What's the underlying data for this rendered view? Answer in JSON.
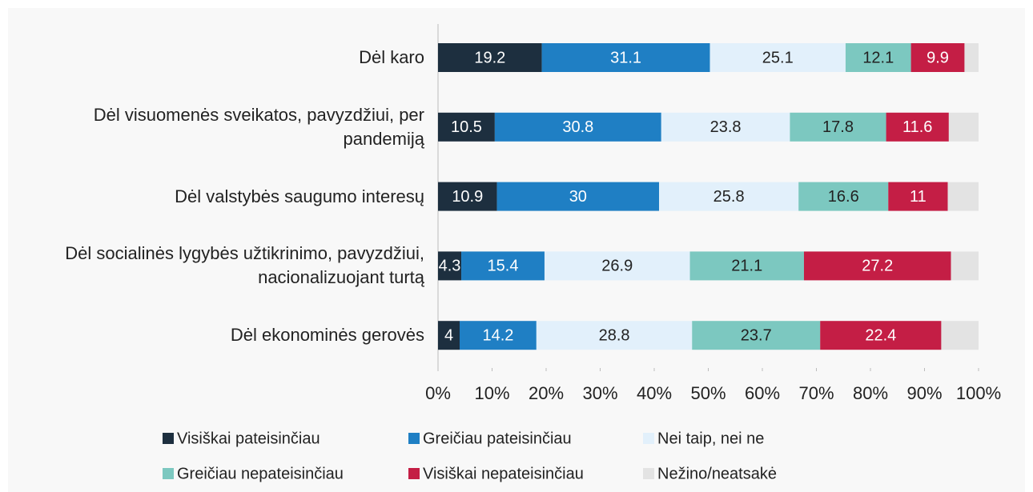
{
  "chart_data": {
    "type": "stacked_barh",
    "categories": [
      "Dėl karo",
      "Dėl visuomenės sveikatos, pavyzdžiui, per pandemiją",
      "Dėl valstybės saugumo interesų",
      "Dėl socialinės lygybės užtikrinimo, pavyzdžiui, nacionalizuojant turtą",
      "Dėl ekonominės gerovės"
    ],
    "series": [
      {
        "name": "Visiškai pateisinčiau",
        "color": "#1d2f3f",
        "label_color": "#ffffff",
        "values": [
          19.2,
          10.5,
          10.9,
          4.3,
          4
        ]
      },
      {
        "name": "Greičiau pateisinčiau",
        "color": "#1f7fc4",
        "label_color": "#ffffff",
        "values": [
          31.1,
          30.8,
          30,
          15.4,
          14.2
        ]
      },
      {
        "name": "Nei taip, nei ne",
        "color": "#e2f0fb",
        "label_color": "#222222",
        "values": [
          25.1,
          23.8,
          25.8,
          26.9,
          28.8
        ]
      },
      {
        "name": "Greičiau nepateisinčiau",
        "color": "#7cc8c0",
        "label_color": "#222222",
        "values": [
          12.1,
          17.8,
          16.6,
          21.1,
          23.7
        ]
      },
      {
        "name": "Visiškai nepateisinčiau",
        "color": "#c41e45",
        "label_color": "#ffffff",
        "values": [
          9.9,
          11.6,
          11,
          27.2,
          22.4
        ]
      },
      {
        "name": "Nežino/neatsakė",
        "color": "#e3e3e3",
        "values": [
          2.6,
          5.5,
          5.7,
          5.1,
          6.9
        ]
      }
    ],
    "xlim": [
      0,
      100
    ],
    "xticks": [
      {
        "value": 0,
        "label": "0%"
      },
      {
        "value": 10,
        "label": "10%"
      },
      {
        "value": 20,
        "label": "20%"
      },
      {
        "value": 30,
        "label": "30%"
      },
      {
        "value": 40,
        "label": "40%"
      },
      {
        "value": 50,
        "label": "50%"
      },
      {
        "value": 60,
        "label": "60%"
      },
      {
        "value": 70,
        "label": "70%"
      },
      {
        "value": 80,
        "label": "80%"
      },
      {
        "value": 90,
        "label": "90%"
      },
      {
        "value": 100,
        "label": "100%"
      }
    ]
  }
}
